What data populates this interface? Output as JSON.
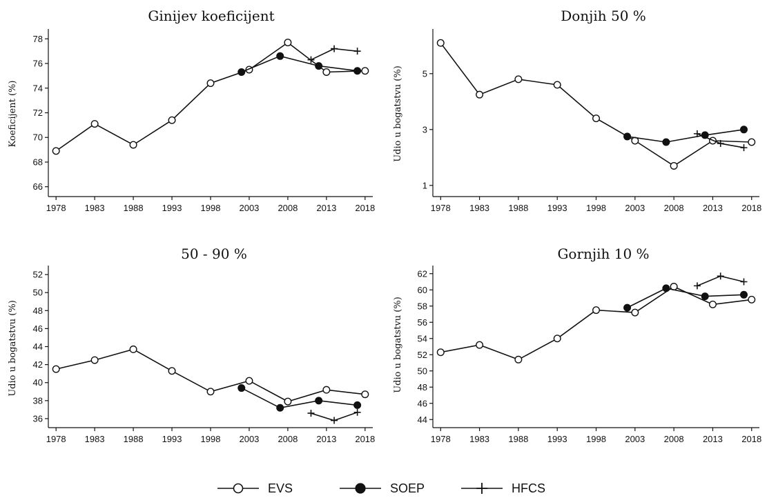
{
  "legend": {
    "items": [
      {
        "label": "EVS",
        "marker": "circle-open"
      },
      {
        "label": "SOEP",
        "marker": "circle-filled"
      },
      {
        "label": "HFCS",
        "marker": "plus"
      }
    ],
    "placement": "bottom-center"
  },
  "colors": {
    "lines": "#111111",
    "background": "#ffffff"
  },
  "chart_data": [
    {
      "type": "line",
      "title": "Ginijev koeficijent",
      "ylabel": "Koeficijent (%)",
      "xlabel": "",
      "xticks": [
        1978,
        1983,
        1988,
        1993,
        1998,
        2003,
        2008,
        2013,
        2018
      ],
      "yticks": [
        66,
        68,
        70,
        72,
        74,
        76,
        78
      ],
      "xlim": [
        1977,
        2019
      ],
      "ylim": [
        65.2,
        78.8
      ],
      "series": [
        {
          "name": "EVS",
          "marker": "circle-open",
          "x": [
            1978,
            1983,
            1988,
            1993,
            1998,
            2003,
            2008,
            2013,
            2018
          ],
          "y": [
            68.9,
            71.1,
            69.4,
            71.4,
            74.4,
            75.5,
            77.7,
            75.3,
            75.4
          ]
        },
        {
          "name": "SOEP",
          "marker": "circle-filled",
          "x": [
            2002,
            2007,
            2012,
            2017
          ],
          "y": [
            75.3,
            76.6,
            75.8,
            75.4
          ]
        },
        {
          "name": "HFCS",
          "marker": "plus",
          "x": [
            2011,
            2014,
            2017
          ],
          "y": [
            76.3,
            77.2,
            77.0
          ]
        }
      ]
    },
    {
      "type": "line",
      "title": "Donjih 50 %",
      "ylabel": "Udio u bogatstvu (%)",
      "xlabel": "",
      "xticks": [
        1978,
        1983,
        1988,
        1993,
        1998,
        2003,
        2008,
        2013,
        2018
      ],
      "yticks": [
        1,
        3,
        5
      ],
      "xlim": [
        1977,
        2019
      ],
      "ylim": [
        0.6,
        6.6
      ],
      "series": [
        {
          "name": "EVS",
          "marker": "circle-open",
          "x": [
            1978,
            1983,
            1988,
            1993,
            1998,
            2003,
            2008,
            2013,
            2018
          ],
          "y": [
            6.1,
            4.25,
            4.8,
            4.6,
            3.4,
            2.6,
            1.7,
            2.6,
            2.55
          ]
        },
        {
          "name": "SOEP",
          "marker": "circle-filled",
          "x": [
            2002,
            2007,
            2012,
            2017
          ],
          "y": [
            2.75,
            2.55,
            2.8,
            3.0
          ]
        },
        {
          "name": "HFCS",
          "marker": "plus",
          "x": [
            2011,
            2014,
            2017
          ],
          "y": [
            2.85,
            2.5,
            2.35
          ]
        }
      ]
    },
    {
      "type": "line",
      "title": "50 - 90 %",
      "ylabel": "Udio u bogatstvu (%)",
      "xlabel": "",
      "xticks": [
        1978,
        1983,
        1988,
        1993,
        1998,
        2003,
        2008,
        2013,
        2018
      ],
      "yticks": [
        36,
        38,
        40,
        42,
        44,
        46,
        48,
        50,
        52
      ],
      "xlim": [
        1977,
        2019
      ],
      "ylim": [
        35.0,
        53.0
      ],
      "series": [
        {
          "name": "EVS",
          "marker": "circle-open",
          "x": [
            1978,
            1983,
            1988,
            1993,
            1998,
            2003,
            2008,
            2013,
            2018
          ],
          "y": [
            41.5,
            42.5,
            43.7,
            41.3,
            39.0,
            40.2,
            37.9,
            39.2,
            38.7
          ]
        },
        {
          "name": "SOEP",
          "marker": "circle-filled",
          "x": [
            2002,
            2007,
            2012,
            2017
          ],
          "y": [
            39.4,
            37.2,
            38.0,
            37.5
          ]
        },
        {
          "name": "HFCS",
          "marker": "plus",
          "x": [
            2011,
            2014,
            2017
          ],
          "y": [
            36.6,
            35.8,
            36.7
          ]
        }
      ]
    },
    {
      "type": "line",
      "title": "Gornjih 10 %",
      "ylabel": "Udio u bogatstvu (%)",
      "xlabel": "",
      "xticks": [
        1978,
        1983,
        1988,
        1993,
        1998,
        2003,
        2008,
        2013,
        2018
      ],
      "yticks": [
        44,
        46,
        48,
        50,
        52,
        54,
        56,
        58,
        60,
        62
      ],
      "xlim": [
        1977,
        2019
      ],
      "ylim": [
        43.0,
        63.0
      ],
      "series": [
        {
          "name": "EVS",
          "marker": "circle-open",
          "x": [
            1978,
            1983,
            1988,
            1993,
            1998,
            2003,
            2008,
            2013,
            2018
          ],
          "y": [
            52.3,
            53.2,
            51.4,
            54.0,
            57.5,
            57.2,
            60.4,
            58.2,
            58.8
          ]
        },
        {
          "name": "SOEP",
          "marker": "circle-filled",
          "x": [
            2002,
            2007,
            2012,
            2017
          ],
          "y": [
            57.8,
            60.2,
            59.2,
            59.4
          ]
        },
        {
          "name": "HFCS",
          "marker": "plus",
          "x": [
            2011,
            2014,
            2017
          ],
          "y": [
            60.5,
            61.7,
            61.0
          ]
        }
      ]
    }
  ]
}
